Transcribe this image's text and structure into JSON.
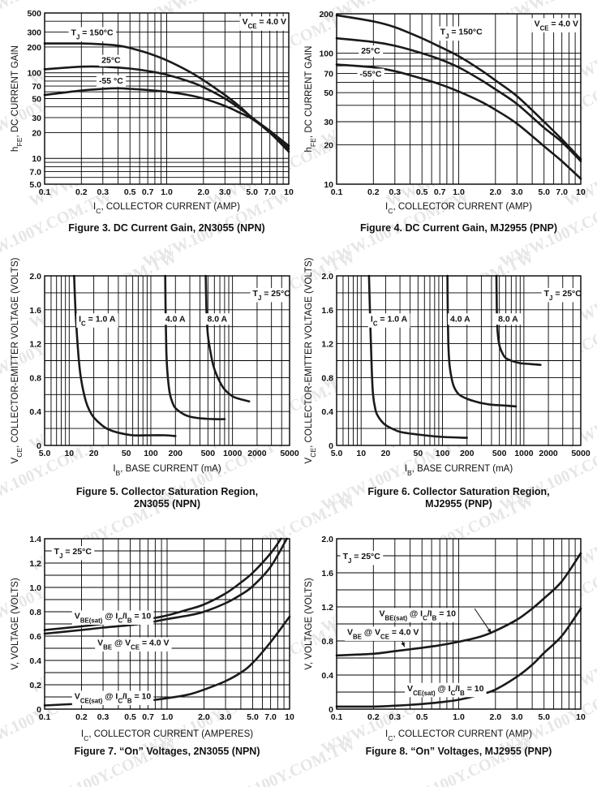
{
  "watermark": "WWW.100Y.COM.TW",
  "chart_data": [
    {
      "id": "fig3",
      "type": "line",
      "caption": "Figure 3. DC Current Gain, 2N3055 (NPN)",
      "xlabel": "I_C, COLLECTOR CURRENT (AMP)",
      "ylabel": "h_FE, DC CURRENT GAIN",
      "xscale": "log",
      "yscale": "log",
      "xlim": [
        0.1,
        10
      ],
      "ylim": [
        5,
        500
      ],
      "xticks": [
        0.1,
        0.2,
        0.3,
        0.5,
        0.7,
        1.0,
        2.0,
        3.0,
        5.0,
        7.0,
        10
      ],
      "xtick_labels": [
        "0.1",
        "0.2",
        "0.3",
        "0.5",
        "0.7",
        "1.0",
        "2.0",
        "3.0",
        "5.0",
        "7.0",
        "10"
      ],
      "yticks": [
        5,
        7,
        10,
        20,
        30,
        50,
        70,
        100,
        200,
        300,
        500
      ],
      "ytick_labels": [
        "5.0",
        "7.0",
        "10",
        "20",
        "30",
        "50",
        "70",
        "100",
        "200",
        "300",
        "500"
      ],
      "grid": true,
      "condition": "V_CE = 4.0 V",
      "series": [
        {
          "name": "T_J = 150°C",
          "x": [
            0.1,
            0.2,
            0.3,
            0.4,
            0.5,
            0.7,
            1.0,
            1.5,
            2.0,
            3.0,
            4.0,
            5.0,
            7.0,
            10
          ],
          "y": [
            220,
            220,
            215,
            208,
            195,
            170,
            140,
            105,
            82,
            55,
            40,
            30,
            21,
            14
          ]
        },
        {
          "name": "25°C",
          "x": [
            0.1,
            0.2,
            0.3,
            0.5,
            0.7,
            1.0,
            1.5,
            2.0,
            3.0,
            4.0,
            5.0,
            7.0,
            10
          ],
          "y": [
            110,
            118,
            118,
            112,
            105,
            95,
            80,
            68,
            50,
            38,
            30,
            20,
            13
          ]
        },
        {
          "name": "-55 °C",
          "x": [
            0.1,
            0.2,
            0.3,
            0.4,
            0.5,
            0.7,
            1.0,
            1.5,
            2.0,
            3.0,
            4.0,
            5.0,
            7.0,
            10
          ],
          "y": [
            55,
            62,
            65,
            66,
            65,
            63,
            60,
            55,
            50,
            41,
            34,
            29,
            20,
            12
          ]
        }
      ]
    },
    {
      "id": "fig4",
      "type": "line",
      "caption": "Figure 4. DC Current Gain, MJ2955 (PNP)",
      "xlabel": "I_C, COLLECTOR CURRENT (AMP)",
      "ylabel": "h_FE, DC CURRENT GAIN",
      "xscale": "log",
      "yscale": "log",
      "xlim": [
        0.1,
        10
      ],
      "ylim": [
        10,
        200
      ],
      "xticks": [
        0.1,
        0.2,
        0.3,
        0.5,
        0.7,
        1.0,
        2.0,
        3.0,
        5.0,
        7.0,
        10
      ],
      "xtick_labels": [
        "0.1",
        "0.2",
        "0.3",
        "0.5",
        "0.7",
        "1.0",
        "2.0",
        "3.0",
        "5.0",
        "7.0",
        "10"
      ],
      "yticks": [
        10,
        20,
        30,
        50,
        70,
        100,
        200
      ],
      "ytick_labels": [
        "10",
        "20",
        "30",
        "50",
        "70",
        "100",
        "200"
      ],
      "grid": true,
      "condition": "V_CE = 4.0 V",
      "series": [
        {
          "name": "T_J = 150°C",
          "x": [
            0.1,
            0.2,
            0.3,
            0.5,
            0.7,
            1.0,
            1.5,
            2.0,
            3.0,
            5.0,
            7.0,
            10
          ],
          "y": [
            195,
            175,
            158,
            130,
            112,
            95,
            75,
            62,
            47,
            30,
            22,
            15.5
          ]
        },
        {
          "name": "25°C",
          "x": [
            0.1,
            0.2,
            0.3,
            0.5,
            0.7,
            1.0,
            1.5,
            2.0,
            3.0,
            5.0,
            7.0,
            10
          ],
          "y": [
            130,
            122,
            114,
            100,
            90,
            78,
            63,
            53,
            41,
            27,
            21,
            15
          ]
        },
        {
          "name": "-55°C",
          "x": [
            0.1,
            0.2,
            0.3,
            0.5,
            0.7,
            1.0,
            1.5,
            2.0,
            3.0,
            5.0,
            7.0,
            10
          ],
          "y": [
            82,
            78,
            73,
            64,
            58,
            51,
            43,
            37,
            29,
            19.5,
            15,
            11
          ]
        }
      ]
    },
    {
      "id": "fig5",
      "type": "line",
      "caption": "Figure 5. Collector Saturation Region, 2N3055 (NPN)",
      "caption_lines": [
        "Figure 5. Collector Saturation Region,",
        "2N3055 (NPN)"
      ],
      "xlabel": "I_B, BASE CURRENT (mA)",
      "ylabel": "V_CE, COLLECTOR-EMITTER VOLTAGE (VOLTS)",
      "xscale": "log",
      "yscale": "linear",
      "xlim": [
        5,
        5000
      ],
      "ylim": [
        0,
        2.0
      ],
      "xticks": [
        5,
        10,
        20,
        50,
        100,
        200,
        500,
        1000,
        2000,
        5000
      ],
      "xtick_labels": [
        "5.0",
        "10",
        "20",
        "50",
        "100",
        "200",
        "500",
        "1000",
        "2000",
        "5000"
      ],
      "yticks": [
        0,
        0.4,
        0.8,
        1.2,
        1.6,
        2.0
      ],
      "ytick_labels": [
        "0",
        "0.4",
        "0.8",
        "1.2",
        "1.6",
        "2.0"
      ],
      "grid": true,
      "condition": "T_J = 25°C",
      "series": [
        {
          "name": "I_C = 1.0 A",
          "x": [
            11.5,
            12,
            13,
            14,
            16,
            18,
            20,
            25,
            30,
            40,
            60,
            100,
            150,
            200
          ],
          "y": [
            2.0,
            1.55,
            1.05,
            0.78,
            0.52,
            0.4,
            0.33,
            0.24,
            0.19,
            0.15,
            0.12,
            0.12,
            0.12,
            0.11
          ]
        },
        {
          "name": "4.0 A",
          "x": [
            150,
            152,
            155,
            160,
            170,
            185,
            200,
            250,
            300,
            400,
            600,
            800
          ],
          "y": [
            2.0,
            1.5,
            1.1,
            0.85,
            0.62,
            0.5,
            0.44,
            0.37,
            0.34,
            0.32,
            0.31,
            0.31
          ]
        },
        {
          "name": "8.0 A",
          "x": [
            470,
            480,
            500,
            550,
            600,
            700,
            800,
            1000,
            1200,
            1600
          ],
          "y": [
            2.0,
            1.6,
            1.3,
            1.05,
            0.9,
            0.75,
            0.66,
            0.58,
            0.55,
            0.52
          ]
        }
      ]
    },
    {
      "id": "fig6",
      "type": "line",
      "caption": "Figure 6. Collector Saturation Region, MJ2955 (PNP)",
      "caption_lines": [
        "Figure 6. Collector Saturation Region,",
        "MJ2955 (PNP)"
      ],
      "xlabel": "I_B, BASE CURRENT (mA)",
      "ylabel": "V_CE, COLLECTOR-EMITTER VOLTAGE (VOLTS)",
      "xscale": "log",
      "yscale": "linear",
      "xlim": [
        5,
        5000
      ],
      "ylim": [
        0,
        2.0
      ],
      "xticks": [
        5,
        10,
        20,
        50,
        100,
        200,
        500,
        1000,
        2000,
        5000
      ],
      "xtick_labels": [
        "5.0",
        "10",
        "20",
        "50",
        "100",
        "200",
        "500",
        "1000",
        "2000",
        "5000"
      ],
      "yticks": [
        0,
        0.4,
        0.8,
        1.2,
        1.6,
        2.0
      ],
      "ytick_labels": [
        "0",
        "0.4",
        "0.8",
        "1.2",
        "1.6",
        "2.0"
      ],
      "grid": true,
      "condition": "T_J = 25°C",
      "series": [
        {
          "name": "I_C = 1.0 A",
          "x": [
            12.5,
            13,
            13.5,
            14,
            15,
            16,
            18,
            20,
            25,
            30,
            40,
            60,
            100,
            200
          ],
          "y": [
            2.0,
            1.4,
            0.9,
            0.6,
            0.42,
            0.35,
            0.28,
            0.24,
            0.19,
            0.16,
            0.14,
            0.12,
            0.1,
            0.09
          ]
        },
        {
          "name": "4.0 A",
          "x": [
            115,
            116,
            118,
            122,
            130,
            140,
            160,
            200,
            250,
            300,
            400,
            600,
            800
          ],
          "y": [
            2.0,
            1.6,
            1.2,
            0.95,
            0.78,
            0.68,
            0.6,
            0.55,
            0.52,
            0.5,
            0.48,
            0.47,
            0.46
          ]
        },
        {
          "name": "8.0 A",
          "x": [
            460,
            465,
            475,
            500,
            550,
            600,
            700,
            900,
            1200,
            1600
          ],
          "y": [
            2.0,
            1.6,
            1.35,
            1.18,
            1.08,
            1.03,
            1.0,
            0.97,
            0.96,
            0.95
          ]
        }
      ]
    },
    {
      "id": "fig7",
      "type": "line",
      "caption": "Figure 7. “On” Voltages, 2N3055 (NPN)",
      "xlabel": "I_C, COLLECTOR CURRENT (AMPERES)",
      "ylabel": "V, VOLTAGE (VOLTS)",
      "xscale": "log",
      "yscale": "linear",
      "xlim": [
        0.1,
        10
      ],
      "ylim": [
        0,
        1.4
      ],
      "xticks": [
        0.1,
        0.2,
        0.3,
        0.5,
        0.7,
        1.0,
        2.0,
        3.0,
        5.0,
        7.0,
        10
      ],
      "xtick_labels": [
        "0.1",
        "0.2",
        "0.3",
        "0.5",
        "0.7",
        "1.0",
        "2.0",
        "3.0",
        "5.0",
        "7.0",
        "10"
      ],
      "yticks": [
        0,
        0.2,
        0.4,
        0.6,
        0.8,
        1.0,
        1.2,
        1.4
      ],
      "ytick_labels": [
        "0",
        "0.2",
        "0.4",
        "0.6",
        "0.8",
        "1.0",
        "1.2",
        "1.4"
      ],
      "grid": true,
      "condition": "T_J = 25°C",
      "series": [
        {
          "name": "V_BE(sat) @ I_C/I_B = 10",
          "x": [
            0.1,
            0.2,
            0.3,
            0.5,
            0.7,
            1.0,
            1.5,
            2.0,
            3.0,
            4.0,
            5.0,
            7.0,
            8.5
          ],
          "y": [
            0.65,
            0.68,
            0.7,
            0.72,
            0.74,
            0.77,
            0.82,
            0.86,
            0.95,
            1.04,
            1.12,
            1.28,
            1.4
          ]
        },
        {
          "name": "V_BE @ V_CE = 4.0 V",
          "x": [
            0.1,
            0.2,
            0.3,
            0.5,
            0.7,
            1.0,
            1.5,
            2.0,
            3.0,
            4.0,
            5.0,
            7.0,
            9.5
          ],
          "y": [
            0.62,
            0.65,
            0.67,
            0.69,
            0.71,
            0.74,
            0.77,
            0.8,
            0.87,
            0.94,
            1.01,
            1.17,
            1.4
          ]
        },
        {
          "name": "V_CE(sat) @ I_C/I_B = 10",
          "x": [
            0.1,
            0.2,
            0.3,
            0.5,
            0.7,
            1.0,
            1.5,
            2.0,
            3.0,
            4.0,
            5.0,
            7.0,
            10
          ],
          "y": [
            0.03,
            0.045,
            0.05,
            0.06,
            0.07,
            0.09,
            0.12,
            0.16,
            0.23,
            0.3,
            0.38,
            0.55,
            0.76
          ]
        }
      ]
    },
    {
      "id": "fig8",
      "type": "line",
      "caption": "Figure 8. “On” Voltages, MJ2955 (PNP)",
      "xlabel": "I_C, COLLECTOR CURRENT (AMP)",
      "ylabel": "V, VOLTAGE (VOLTS)",
      "xscale": "log",
      "yscale": "linear",
      "xlim": [
        0.1,
        10
      ],
      "ylim": [
        0,
        2.0
      ],
      "xticks": [
        0.1,
        0.2,
        0.3,
        0.5,
        1.0,
        2.0,
        3.0,
        5.0,
        10
      ],
      "xtick_labels": [
        "0.1",
        "0.2",
        "0.3",
        "0.5",
        "1.0",
        "2.0",
        "3.0",
        "5.0",
        "10"
      ],
      "yticks": [
        0,
        0.4,
        0.8,
        1.2,
        1.6,
        2.0
      ],
      "ytick_labels": [
        "0",
        "0.4",
        "0.8",
        "1.2",
        "1.6",
        "2.0"
      ],
      "grid": true,
      "condition": "T_J = 25°C",
      "series": [
        {
          "name": "V_BE(sat) @ I_C/I_B = 10 / V_BE @ V_CE = 4.0 V",
          "x": [
            0.1,
            0.2,
            0.3,
            0.5,
            0.7,
            1.0,
            1.5,
            2.0,
            3.0,
            4.0,
            5.0,
            7.0,
            10
          ],
          "y": [
            0.63,
            0.65,
            0.68,
            0.72,
            0.75,
            0.79,
            0.85,
            0.92,
            1.05,
            1.18,
            1.3,
            1.5,
            1.83
          ]
        },
        {
          "name": "V_CE(sat) @ I_C/I_B = 10",
          "x": [
            0.1,
            0.2,
            0.3,
            0.5,
            0.7,
            1.0,
            1.5,
            2.0,
            3.0,
            4.0,
            5.0,
            7.0,
            10
          ],
          "y": [
            0.03,
            0.03,
            0.04,
            0.06,
            0.08,
            0.11,
            0.17,
            0.23,
            0.38,
            0.52,
            0.66,
            0.86,
            1.18
          ]
        }
      ]
    }
  ]
}
